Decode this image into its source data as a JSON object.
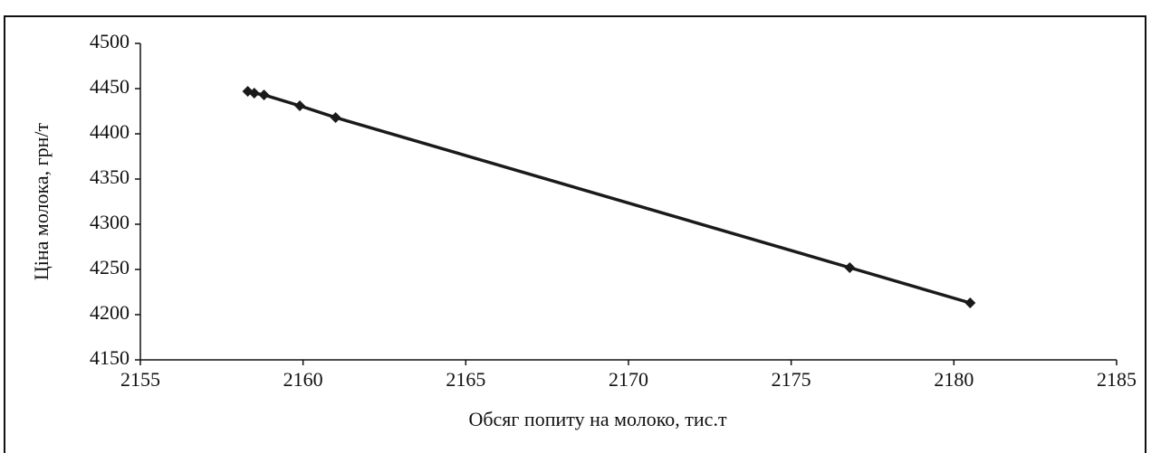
{
  "chart_data": {
    "type": "scatter",
    "x_label": "Обсяг попиту на молоко, тис.т",
    "y_label": "Ціна молока, грн/т",
    "x": [
      2158.3,
      2158.5,
      2158.8,
      2159.9,
      2161.0,
      2176.8,
      2180.5
    ],
    "values": [
      4447,
      4445,
      4443,
      4431,
      4418,
      4252,
      4213
    ],
    "color": "#1a1a1a",
    "line": true,
    "xlim": [
      2155,
      2185
    ],
    "xticks": [
      2155,
      2160,
      2165,
      2170,
      2175,
      2180,
      2185
    ],
    "ylim": [
      4150,
      4500
    ],
    "yticks": [
      4150,
      4200,
      4250,
      4300,
      4350,
      4400,
      4450,
      4500
    ]
  }
}
